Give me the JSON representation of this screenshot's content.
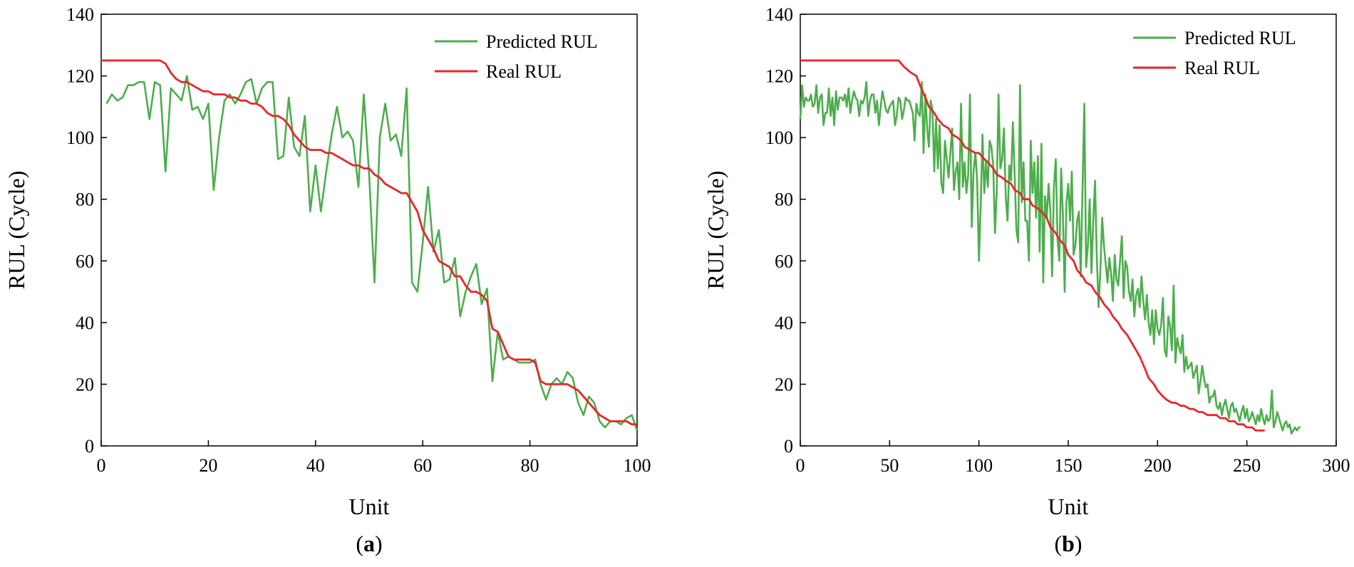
{
  "chart_data": [
    {
      "type": "line",
      "panel_label": "a",
      "xlabel": "Unit",
      "ylabel": "RUL (Cycle)",
      "xlim": [
        0,
        100
      ],
      "ylim": [
        0,
        140
      ],
      "xticks": [
        0,
        20,
        40,
        60,
        80,
        100
      ],
      "yticks": [
        0,
        20,
        40,
        60,
        80,
        100,
        120,
        140
      ],
      "grid": false,
      "legend_position": "top-right",
      "series": [
        {
          "name": "Predicted RUL",
          "color": "#4cae4c",
          "x": [
            1,
            2,
            3,
            4,
            5,
            6,
            7,
            8,
            9,
            10,
            11,
            12,
            13,
            14,
            15,
            16,
            17,
            18,
            19,
            20,
            21,
            22,
            23,
            24,
            25,
            26,
            27,
            28,
            29,
            30,
            31,
            32,
            33,
            34,
            35,
            36,
            37,
            38,
            39,
            40,
            41,
            42,
            43,
            44,
            45,
            46,
            47,
            48,
            49,
            50,
            51,
            52,
            53,
            54,
            55,
            56,
            57,
            58,
            59,
            60,
            61,
            62,
            63,
            64,
            65,
            66,
            67,
            68,
            69,
            70,
            71,
            72,
            73,
            74,
            75,
            76,
            77,
            78,
            79,
            80,
            81,
            82,
            83,
            84,
            85,
            86,
            87,
            88,
            89,
            90,
            91,
            92,
            93,
            94,
            95,
            96,
            97,
            98,
            99,
            100
          ],
          "y": [
            111,
            114,
            112,
            113,
            117,
            117,
            118,
            118,
            106,
            118,
            117,
            89,
            116,
            114,
            112,
            120,
            109,
            110,
            106,
            111,
            83,
            100,
            112,
            114,
            111,
            114,
            118,
            119,
            111,
            116,
            118,
            118,
            93,
            94,
            113,
            97,
            94,
            107,
            76,
            91,
            76,
            89,
            101,
            110,
            100,
            102,
            99,
            84,
            114,
            88,
            53,
            100,
            111,
            99,
            101,
            94,
            116,
            53,
            50,
            66,
            84,
            63,
            70,
            53,
            54,
            61,
            42,
            50,
            55,
            59,
            46,
            51,
            21,
            37,
            28,
            29,
            28,
            27,
            27,
            27,
            28,
            20,
            15,
            20,
            22,
            20,
            24,
            22,
            14,
            10,
            16,
            14,
            8,
            6,
            8,
            8,
            7,
            9,
            10,
            5
          ]
        },
        {
          "name": "Real RUL",
          "color": "#e8262b",
          "x": [
            0,
            1,
            2,
            3,
            4,
            5,
            6,
            7,
            8,
            9,
            10,
            11,
            12,
            13,
            14,
            15,
            16,
            17,
            18,
            19,
            20,
            21,
            22,
            23,
            24,
            25,
            26,
            27,
            28,
            29,
            30,
            31,
            32,
            33,
            34,
            35,
            36,
            37,
            38,
            39,
            40,
            41,
            42,
            43,
            44,
            45,
            46,
            47,
            48,
            49,
            50,
            51,
            52,
            53,
            54,
            55,
            56,
            57,
            58,
            59,
            60,
            61,
            62,
            63,
            64,
            65,
            66,
            67,
            68,
            69,
            70,
            71,
            72,
            73,
            74,
            75,
            76,
            77,
            78,
            79,
            80,
            81,
            82,
            83,
            84,
            85,
            86,
            87,
            88,
            89,
            90,
            91,
            92,
            93,
            94,
            95,
            96,
            97,
            98,
            99,
            100
          ],
          "y": [
            125,
            125,
            125,
            125,
            125,
            125,
            125,
            125,
            125,
            125,
            125,
            125,
            124,
            121,
            119,
            118,
            118,
            117,
            116,
            115,
            115,
            114,
            114,
            114,
            113,
            113,
            112,
            112,
            111,
            111,
            110,
            108,
            107,
            107,
            106,
            104,
            101,
            99,
            97,
            96,
            96,
            96,
            95,
            95,
            94,
            93,
            92,
            91,
            91,
            90,
            90,
            88,
            87,
            85,
            84,
            83,
            82,
            82,
            79,
            76,
            70,
            67,
            64,
            60,
            59,
            58,
            55,
            55,
            52,
            50,
            50,
            49,
            47,
            38,
            37,
            33,
            29,
            28,
            28,
            28,
            28,
            27,
            21,
            20,
            20,
            20,
            20,
            20,
            19,
            18,
            16,
            14,
            12,
            10,
            9,
            8,
            8,
            8,
            8,
            7,
            7
          ]
        }
      ]
    },
    {
      "type": "line",
      "panel_label": "b",
      "xlabel": "Unit",
      "ylabel": "RUL (Cycle)",
      "xlim": [
        0,
        300
      ],
      "ylim": [
        0,
        140
      ],
      "xticks": [
        0,
        50,
        100,
        150,
        200,
        250,
        300
      ],
      "yticks": [
        0,
        20,
        40,
        60,
        80,
        100,
        120,
        140
      ],
      "grid": false,
      "legend_position": "top-right",
      "series": [
        {
          "name": "Predicted RUL",
          "color": "#4cae4c",
          "x_step": 1,
          "x_start": 0,
          "y": [
            106,
            117,
            110,
            113,
            112,
            112,
            114,
            110,
            111,
            117,
            108,
            113,
            114,
            104,
            108,
            108,
            116,
            107,
            113,
            104,
            115,
            109,
            113,
            113,
            112,
            114,
            110,
            116,
            108,
            112,
            115,
            113,
            112,
            107,
            112,
            111,
            113,
            118,
            107,
            112,
            114,
            114,
            108,
            112,
            104,
            110,
            115,
            112,
            109,
            108,
            110,
            111,
            112,
            104,
            107,
            113,
            112,
            106,
            109,
            113,
            112,
            112,
            110,
            108,
            99,
            111,
            108,
            107,
            118,
            95,
            114,
            103,
            97,
            112,
            109,
            89,
            106,
            90,
            104,
            85,
            82,
            99,
            93,
            87,
            95,
            103,
            83,
            89,
            92,
            80,
            111,
            84,
            92,
            82,
            88,
            114,
            71,
            89,
            95,
            86,
            60,
            78,
            101,
            82,
            92,
            84,
            99,
            97,
            91,
            69,
            83,
            114,
            90,
            93,
            103,
            81,
            73,
            91,
            86,
            105,
            88,
            70,
            66,
            117,
            79,
            92,
            73,
            73,
            60,
            99,
            82,
            92,
            74,
            94,
            63,
            98,
            53,
            81,
            74,
            85,
            76,
            55,
            84,
            93,
            67,
            60,
            90,
            75,
            50,
            79,
            85,
            73,
            89,
            62,
            65,
            73,
            76,
            55,
            84,
            111,
            58,
            65,
            80,
            56,
            73,
            86,
            61,
            45,
            57,
            74,
            65,
            59,
            53,
            61,
            56,
            47,
            62,
            54,
            52,
            60,
            68,
            48,
            60,
            58,
            50,
            47,
            54,
            42,
            49,
            51,
            45,
            55,
            47,
            41,
            49,
            40,
            36,
            44,
            33,
            44,
            38,
            36,
            39,
            48,
            31,
            29,
            42,
            39,
            31,
            52,
            27,
            35,
            32,
            30,
            36,
            24,
            29,
            25,
            26,
            27,
            22,
            24,
            26,
            17,
            21,
            26,
            22,
            19,
            20,
            14,
            16,
            16,
            18,
            13,
            12,
            14,
            10,
            13,
            15,
            12,
            9,
            13,
            14,
            11,
            12,
            10,
            8,
            11,
            13,
            9,
            12,
            8,
            9,
            11,
            9,
            7,
            10,
            8,
            12,
            9,
            7,
            10,
            8,
            9,
            18,
            6,
            8,
            11,
            9,
            7,
            5,
            7,
            8,
            6,
            7,
            4,
            5,
            6,
            5,
            6,
            6
          ]
        },
        {
          "name": "Real RUL",
          "color": "#e8262b",
          "x": [
            0,
            55,
            58,
            60,
            62,
            65,
            67,
            70,
            72,
            75,
            77,
            80,
            83,
            85,
            88,
            90,
            92,
            95,
            98,
            100,
            103,
            105,
            108,
            110,
            113,
            115,
            118,
            120,
            123,
            125,
            128,
            130,
            133,
            135,
            138,
            140,
            143,
            145,
            148,
            150,
            153,
            155,
            158,
            160,
            163,
            165,
            168,
            170,
            173,
            175,
            178,
            180,
            183,
            185,
            188,
            190,
            193,
            195,
            198,
            200,
            203,
            205,
            208,
            210,
            213,
            215,
            218,
            220,
            223,
            225,
            228,
            230,
            233,
            235,
            238,
            240,
            243,
            245,
            248,
            250,
            253,
            255,
            258,
            260
          ],
          "y": [
            125,
            125,
            123,
            122,
            121,
            120,
            117,
            113,
            110,
            108,
            106,
            104,
            103,
            101,
            100,
            99,
            97,
            96,
            95,
            95,
            93,
            92,
            90,
            88,
            87,
            86,
            85,
            83,
            82,
            80,
            80,
            78,
            77,
            76,
            74,
            71,
            69,
            67,
            65,
            62,
            60,
            57,
            55,
            53,
            52,
            50,
            48,
            46,
            44,
            42,
            40,
            38,
            36,
            34,
            31,
            29,
            25,
            22,
            20,
            18,
            16,
            15,
            14,
            14,
            13,
            13,
            12,
            12,
            11,
            11,
            10,
            10,
            10,
            9,
            9,
            8,
            8,
            7,
            7,
            6,
            6,
            5,
            5,
            5
          ]
        }
      ]
    }
  ]
}
